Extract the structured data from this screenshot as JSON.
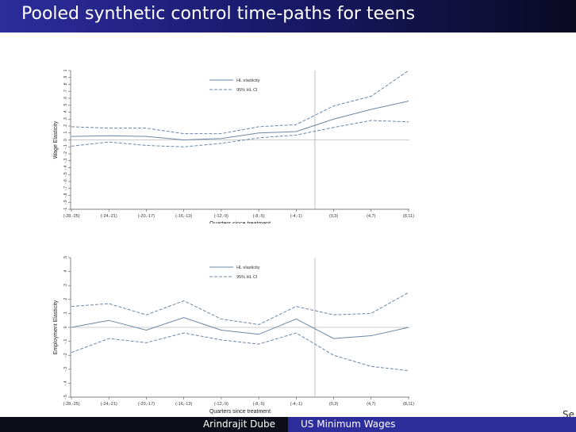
{
  "header": {
    "title": "Pooled synthetic control time-paths for teens"
  },
  "footer": {
    "author": "Arindrajit Dube",
    "talk_title": "US Minimum Wages"
  },
  "corner_text": "Se",
  "colors": {
    "title_bar": "#2d2d9c",
    "series": "#6a87a6",
    "vline": "#b0b0b0"
  },
  "chart_data": [
    {
      "type": "line",
      "categories": [
        "(-28,-25)",
        "(-24,-21)",
        "(-20,-17)",
        "(-16,-13)",
        "(-12,-9)",
        "(-8,-5)",
        "(-4,-1)",
        "(0,3)",
        "(4,7)",
        "(8,11)"
      ],
      "xlabel": "Quarters since treatment",
      "ylabel": "Wage Elasticity",
      "ylim": [
        -1,
        1
      ],
      "yticks": [
        -1,
        -0.9,
        -0.8,
        -0.7,
        -0.6,
        -0.5,
        -0.4,
        -0.3,
        -0.2,
        -0.1,
        0,
        0.1,
        0.2,
        0.3,
        0.4,
        0.5,
        0.6,
        0.7,
        0.8,
        0.9,
        1
      ],
      "ytick_labels": [
        "-1",
        "-.9",
        "-.8",
        "-.7",
        "-.6",
        "-.5",
        "-.4",
        "-.3",
        "-.2",
        "-.1",
        "0",
        ".1",
        ".2",
        ".3",
        ".4",
        ".5",
        ".6",
        ".7",
        ".8",
        ".9",
        "1"
      ],
      "treatment_line_between": [
        6,
        7
      ],
      "zero_line": true,
      "legend_position": "top-center",
      "series": [
        {
          "name": "HL elasticity",
          "style": "solid",
          "values": [
            0.05,
            0.06,
            0.05,
            0.0,
            0.02,
            0.1,
            0.12,
            0.3,
            0.44,
            0.56
          ]
        },
        {
          "name": "95% HL CI",
          "style": "dashed",
          "values": [
            0.19,
            0.17,
            0.17,
            0.09,
            0.09,
            0.19,
            0.22,
            0.49,
            0.63,
            1.0
          ]
        },
        {
          "style": "dashed",
          "values": [
            -0.09,
            -0.03,
            -0.08,
            -0.1,
            -0.05,
            0.03,
            0.07,
            0.18,
            0.28,
            0.26
          ]
        }
      ]
    },
    {
      "type": "line",
      "categories": [
        "(-28,-25)",
        "(-24,-21)",
        "(-20,-17)",
        "(-16,-13)",
        "(-12,-9)",
        "(-8,-5)",
        "(-4,-1)",
        "(0,3)",
        "(4,7)",
        "(8,11)"
      ],
      "xlabel": "Quarters since treatment",
      "ylabel": "Employment Elasticity",
      "ylim": [
        -0.5,
        0.5
      ],
      "yticks": [
        -0.5,
        -0.4,
        -0.3,
        -0.2,
        -0.1,
        0,
        0.1,
        0.2,
        0.3,
        0.4,
        0.5
      ],
      "ytick_labels": [
        "-.5",
        "-.4",
        "-.3",
        "-.2",
        "-.1",
        "0",
        ".1",
        ".2",
        ".3",
        ".4",
        ".5"
      ],
      "treatment_line_between": [
        6,
        7
      ],
      "zero_line": true,
      "legend_position": "top-center",
      "series": [
        {
          "name": "HL elasticity",
          "style": "solid",
          "values": [
            0.0,
            0.05,
            -0.02,
            0.07,
            -0.02,
            -0.05,
            0.06,
            -0.08,
            -0.06,
            0.0
          ]
        },
        {
          "name": "95% HL CI",
          "style": "dashed",
          "values": [
            0.15,
            0.17,
            0.09,
            0.19,
            0.06,
            0.02,
            0.15,
            0.09,
            0.1,
            0.25
          ]
        },
        {
          "style": "dashed",
          "values": [
            -0.18,
            -0.08,
            -0.11,
            -0.04,
            -0.09,
            -0.12,
            -0.04,
            -0.2,
            -0.28,
            -0.31
          ]
        }
      ]
    }
  ]
}
